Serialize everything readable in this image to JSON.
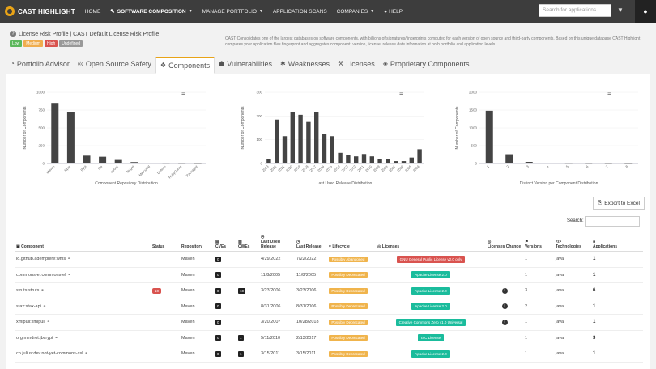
{
  "nav": {
    "logo": "CAST HIGHLIGHT",
    "items": [
      {
        "label": "HOME",
        "caret": false,
        "active": false
      },
      {
        "label": "SOFTWARE COMPOSITION",
        "caret": true,
        "active": true
      },
      {
        "label": "MANAGE PORTFOLIO",
        "caret": true,
        "active": false
      },
      {
        "label": "APPLICATION SCANS",
        "caret": false,
        "active": false
      },
      {
        "label": "COMPANIES",
        "caret": true,
        "active": false
      },
      {
        "label": "HELP",
        "caret": false,
        "active": false
      }
    ],
    "search_placeholder": "Search for applications"
  },
  "profile": {
    "title": "License Risk Profile | CAST Default License Risk Profile",
    "badges": [
      {
        "label": "Low",
        "color": "#5cb85c"
      },
      {
        "label": "Medium",
        "color": "#f0ad4e"
      },
      {
        "label": "High",
        "color": "#d9534f"
      },
      {
        "label": "Undefined",
        "color": "#999999"
      }
    ],
    "description": "CAST Consolidates one of the largest databases on software components, with billions of signatures/fingerprints computed for each version of open source and third-party components. Based on this unique database CAST Highlight compares your application files fingerprint and aggregates component, version, license, release date information at both portfolio and application levels."
  },
  "tabs": [
    {
      "label": "Portfolio Advisor",
      "icon": "pie-chart-icon",
      "glyph": "◔",
      "active": false
    },
    {
      "label": "Open Source Safety",
      "icon": "shield-icon",
      "glyph": "◎",
      "active": false
    },
    {
      "label": "Components",
      "icon": "cubes-icon",
      "glyph": "❖",
      "active": true
    },
    {
      "label": "Vulnerabilities",
      "icon": "bug-icon",
      "glyph": "☗",
      "active": false
    },
    {
      "label": "Weaknesses",
      "icon": "spider-icon",
      "glyph": "✱",
      "active": false
    },
    {
      "label": "Licenses",
      "icon": "gavel-icon",
      "glyph": "⚒",
      "active": false
    },
    {
      "label": "Proprietary Components",
      "icon": "cube-icon",
      "glyph": "◈",
      "active": false
    }
  ],
  "chart_data": [
    {
      "type": "bar",
      "title": "",
      "xlabel": "Component Repository Distribution",
      "ylabel": "Number of Components",
      "categories": [
        "Maven",
        "Npm",
        "Pypi",
        "Go",
        "nuGet",
        "Nuget",
        "Mercurial",
        "Debian",
        "RubyGems",
        "Packagist"
      ],
      "values": [
        850,
        720,
        110,
        95,
        50,
        20,
        5,
        3,
        2,
        1
      ],
      "ylim": [
        0,
        1000
      ],
      "yticks": [
        0,
        250,
        500,
        750,
        1000
      ]
    },
    {
      "type": "bar",
      "title": "",
      "xlabel": "Last Used Release Distribution",
      "ylabel": "Number of Components",
      "categories": [
        "2023",
        "2022",
        "2021",
        "2020",
        "2019",
        "2018",
        "2017",
        "2016",
        "2015",
        "2014",
        "2013",
        "2012",
        "2011",
        "2010",
        "2009",
        "2008",
        "2007",
        "2006",
        "2005",
        "2004"
      ],
      "values": [
        20,
        185,
        115,
        215,
        205,
        175,
        215,
        125,
        115,
        45,
        35,
        30,
        40,
        30,
        20,
        20,
        10,
        10,
        25,
        60
      ],
      "ylim": [
        0,
        300
      ],
      "yticks": [
        0,
        100,
        200,
        300
      ]
    },
    {
      "type": "bar",
      "title": "",
      "xlabel": "Distinct Version per Component Distribution",
      "ylabel": "Number of Components",
      "categories": [
        "1",
        "2",
        "3",
        "4",
        "5",
        "6",
        "7",
        "8"
      ],
      "values": [
        1480,
        260,
        45,
        10,
        5,
        3,
        2,
        1
      ],
      "ylim": [
        0,
        2000
      ],
      "yticks": [
        0,
        500,
        1000,
        1500,
        2000
      ]
    }
  ],
  "table": {
    "export_label": "Export to Excel",
    "search_label": "Search:",
    "headers": {
      "component": "Component",
      "status": "Status",
      "repository": "Repository",
      "cves": "CVEs",
      "cwes": "CWEs",
      "last_used": "Last Used Release",
      "last_release": "Last Release",
      "lifecycle": "Lifecycle",
      "licenses": "Licenses",
      "licenses_change": "Licenses Change",
      "versions": "Versions",
      "technologies": "Technologies",
      "applications": "Applications"
    },
    "rows": [
      {
        "component": "io.github.adempiere:wms",
        "status": "",
        "repository": "Maven",
        "cves": "0",
        "cwes": "",
        "last_used": "4/29/2022",
        "last_release": "7/22/2022",
        "lifecycle": "Possibly Abandoned",
        "license": "GNU General Public License v2.0 only",
        "license_color": "#d9534f",
        "change": false,
        "versions": "1",
        "tech": "java",
        "apps": "1"
      },
      {
        "component": "commons-el:commons-el",
        "status": "",
        "repository": "Maven",
        "cves": "0",
        "cwes": "",
        "last_used": "11/8/2005",
        "last_release": "11/8/2005",
        "lifecycle": "Possibly Deprecated",
        "license": "Apache License 2.0",
        "license_color": "#1abc9c",
        "change": false,
        "versions": "1",
        "tech": "java",
        "apps": "1"
      },
      {
        "component": "struts:struts",
        "status": "10",
        "repository": "Maven",
        "cves": "0",
        "cwes": "10",
        "last_used": "3/23/2006",
        "last_release": "3/23/2006",
        "lifecycle": "Possibly Deprecated",
        "license": "Apache License 2.0",
        "license_color": "#1abc9c",
        "change": true,
        "versions": "3",
        "tech": "java",
        "apps": "6"
      },
      {
        "component": "stax:stax-api",
        "status": "",
        "repository": "Maven",
        "cves": "0",
        "cwes": "",
        "last_used": "8/31/2006",
        "last_release": "8/31/2006",
        "lifecycle": "Possibly Deprecated",
        "license": "Apache License 2.0",
        "license_color": "#1abc9c",
        "change": true,
        "versions": "2",
        "tech": "java",
        "apps": "1"
      },
      {
        "component": "xmlpull:xmlpull",
        "status": "",
        "repository": "Maven",
        "cves": "0",
        "cwes": "",
        "last_used": "3/20/2007",
        "last_release": "10/28/2018",
        "lifecycle": "Possibly Deprecated",
        "license": "Creative Commons Zero v1.0 Universal",
        "license_color": "#1abc9c",
        "change": true,
        "versions": "1",
        "tech": "java",
        "apps": "1"
      },
      {
        "component": "org.mindrot:jbcrypt",
        "status": "",
        "repository": "Maven",
        "cves": "0",
        "cwes": "1",
        "last_used": "5/11/2010",
        "last_release": "2/13/2017",
        "lifecycle": "Possibly Deprecated",
        "license": "ISC License",
        "license_color": "#1abc9c",
        "change": false,
        "versions": "1",
        "tech": "java",
        "apps": "3"
      },
      {
        "component": "co.julius:dev.not-yet-commons-ssl",
        "status": "",
        "repository": "Maven",
        "cves": "0",
        "cwes": "1",
        "last_used": "3/15/2011",
        "last_release": "3/15/2011",
        "lifecycle": "Possibly Deprecated",
        "license": "Apache License 2.0",
        "license_color": "#1abc9c",
        "change": false,
        "versions": "1",
        "tech": "java",
        "apps": "1"
      }
    ]
  }
}
